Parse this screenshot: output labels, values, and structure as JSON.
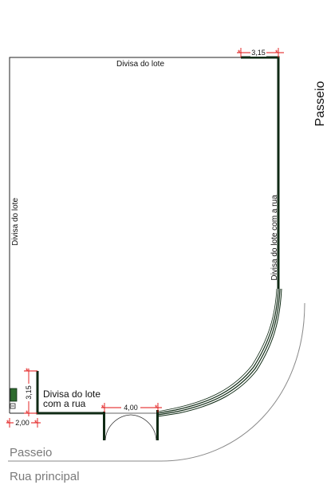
{
  "labels": {
    "top_boundary": "Divisa do lote",
    "left_boundary": "Divisa do lote",
    "right_boundary": "Divisa do lote com a rua",
    "bottom_boundary_line1": "Divisa do lote",
    "bottom_boundary_line2": "com a rua",
    "right_sidewalk": "Passeio",
    "bottom_sidewalk": "Passeio",
    "main_street": "Rua principal"
  },
  "dimensions": {
    "top_right": "3,15",
    "left_vertical": "3,15",
    "bottom_left": "2,00",
    "gate_width": "4,00"
  },
  "colors": {
    "wall": "#0f2a14",
    "thin_line": "#222222",
    "dimension_mark": "#e01010",
    "curb": "#8a8a8a",
    "meter_box": "#2e6b2e"
  }
}
